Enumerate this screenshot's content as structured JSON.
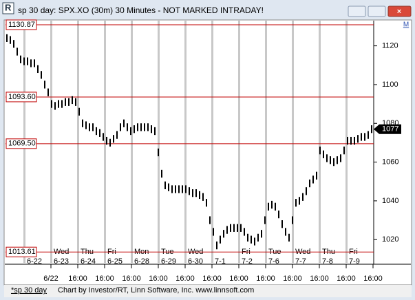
{
  "window": {
    "title": "sp 30 day: SPX.XO (30m) 30 Minutes - NOT MARKED INTRADAY!",
    "icon_label": "M"
  },
  "footer": {
    "tab": "*sp 30 day",
    "credit": "Chart by Investor/RT, Linn Software, Inc. www.linnsoft.com"
  },
  "chart_data": {
    "type": "hilo",
    "color": "#000000",
    "ylim": [
      1008,
      1133
    ],
    "yticks": [
      1020,
      1040,
      1060,
      1080,
      1100,
      1120
    ],
    "weekdays": [
      null,
      "Wed",
      "Thu",
      "Fri",
      "Mon",
      "Tue",
      "Wed",
      null,
      "Fri",
      "Tue",
      "Wed",
      "Thu",
      "Fri"
    ],
    "categories": [
      "6-22",
      "6-23",
      "6-24",
      "6-25",
      "6-28",
      "6-29",
      "6-30",
      "7-1",
      "7-2",
      "7-6",
      "7-7",
      "7-8",
      "7-9"
    ],
    "time_labels": [
      "6/22",
      "16:00",
      "16:00",
      "16:00",
      "16:00",
      "16:00",
      "16:00",
      "16:00",
      "16:00",
      "16:00",
      "16:00",
      "16:00",
      "16:00"
    ],
    "hlines": [
      {
        "value": 1130.87,
        "label": "1130.87"
      },
      {
        "value": 1093.6,
        "label": "1093.60"
      },
      {
        "value": 1069.5,
        "label": "1069.50"
      },
      {
        "value": 1013.61,
        "label": "1013.61"
      }
    ],
    "hline_color": "#c00000",
    "last": 1077,
    "high": [
      1126,
      1125,
      1123,
      1119,
      1115,
      1114,
      1114,
      1113,
      1113,
      1110,
      1107,
      1102,
      1098,
      1092,
      1091,
      1092,
      1092,
      1093,
      1093,
      1094,
      1093,
      1088,
      1082,
      1081,
      1080,
      1080,
      1078,
      1077,
      1075,
      1073,
      1072,
      1074,
      1076,
      1080,
      1082,
      1080,
      1078,
      1079,
      1080,
      1080,
      1080,
      1080,
      1079,
      1078,
      1067,
      1056,
      1050,
      1049,
      1048,
      1048,
      1048,
      1048,
      1048,
      1047,
      1046,
      1046,
      1045,
      1044,
      1041,
      1032,
      1026,
      1019,
      1022,
      1025,
      1027,
      1028,
      1028,
      1028,
      1028,
      1026,
      1023,
      1022,
      1021,
      1023,
      1025,
      1032,
      1039,
      1040,
      1039,
      1035,
      1030,
      1026,
      1023,
      1032,
      1041,
      1042,
      1044,
      1047,
      1051,
      1053,
      1055,
      1068,
      1066,
      1064,
      1063,
      1062,
      1063,
      1064,
      1068,
      1073,
      1073,
      1073,
      1074,
      1075,
      1075,
      1076,
      1079
    ],
    "low": [
      1122,
      1121,
      1119,
      1115,
      1111,
      1110,
      1110,
      1109,
      1109,
      1106,
      1103,
      1098,
      1094,
      1088,
      1087,
      1088,
      1088,
      1089,
      1089,
      1090,
      1089,
      1084,
      1078,
      1077,
      1076,
      1076,
      1074,
      1073,
      1071,
      1069,
      1068,
      1070,
      1072,
      1076,
      1078,
      1076,
      1074,
      1075,
      1076,
      1076,
      1076,
      1076,
      1075,
      1074,
      1063,
      1052,
      1046,
      1045,
      1044,
      1044,
      1044,
      1044,
      1044,
      1043,
      1042,
      1042,
      1041,
      1040,
      1037,
      1028,
      1022,
      1015,
      1018,
      1021,
      1023,
      1024,
      1024,
      1024,
      1024,
      1022,
      1019,
      1018,
      1017,
      1019,
      1021,
      1028,
      1035,
      1036,
      1035,
      1031,
      1026,
      1022,
      1019,
      1028,
      1037,
      1038,
      1040,
      1043,
      1047,
      1049,
      1051,
      1064,
      1062,
      1060,
      1059,
      1058,
      1059,
      1060,
      1064,
      1069,
      1069,
      1069,
      1070,
      1071,
      1071,
      1072,
      1075
    ]
  }
}
